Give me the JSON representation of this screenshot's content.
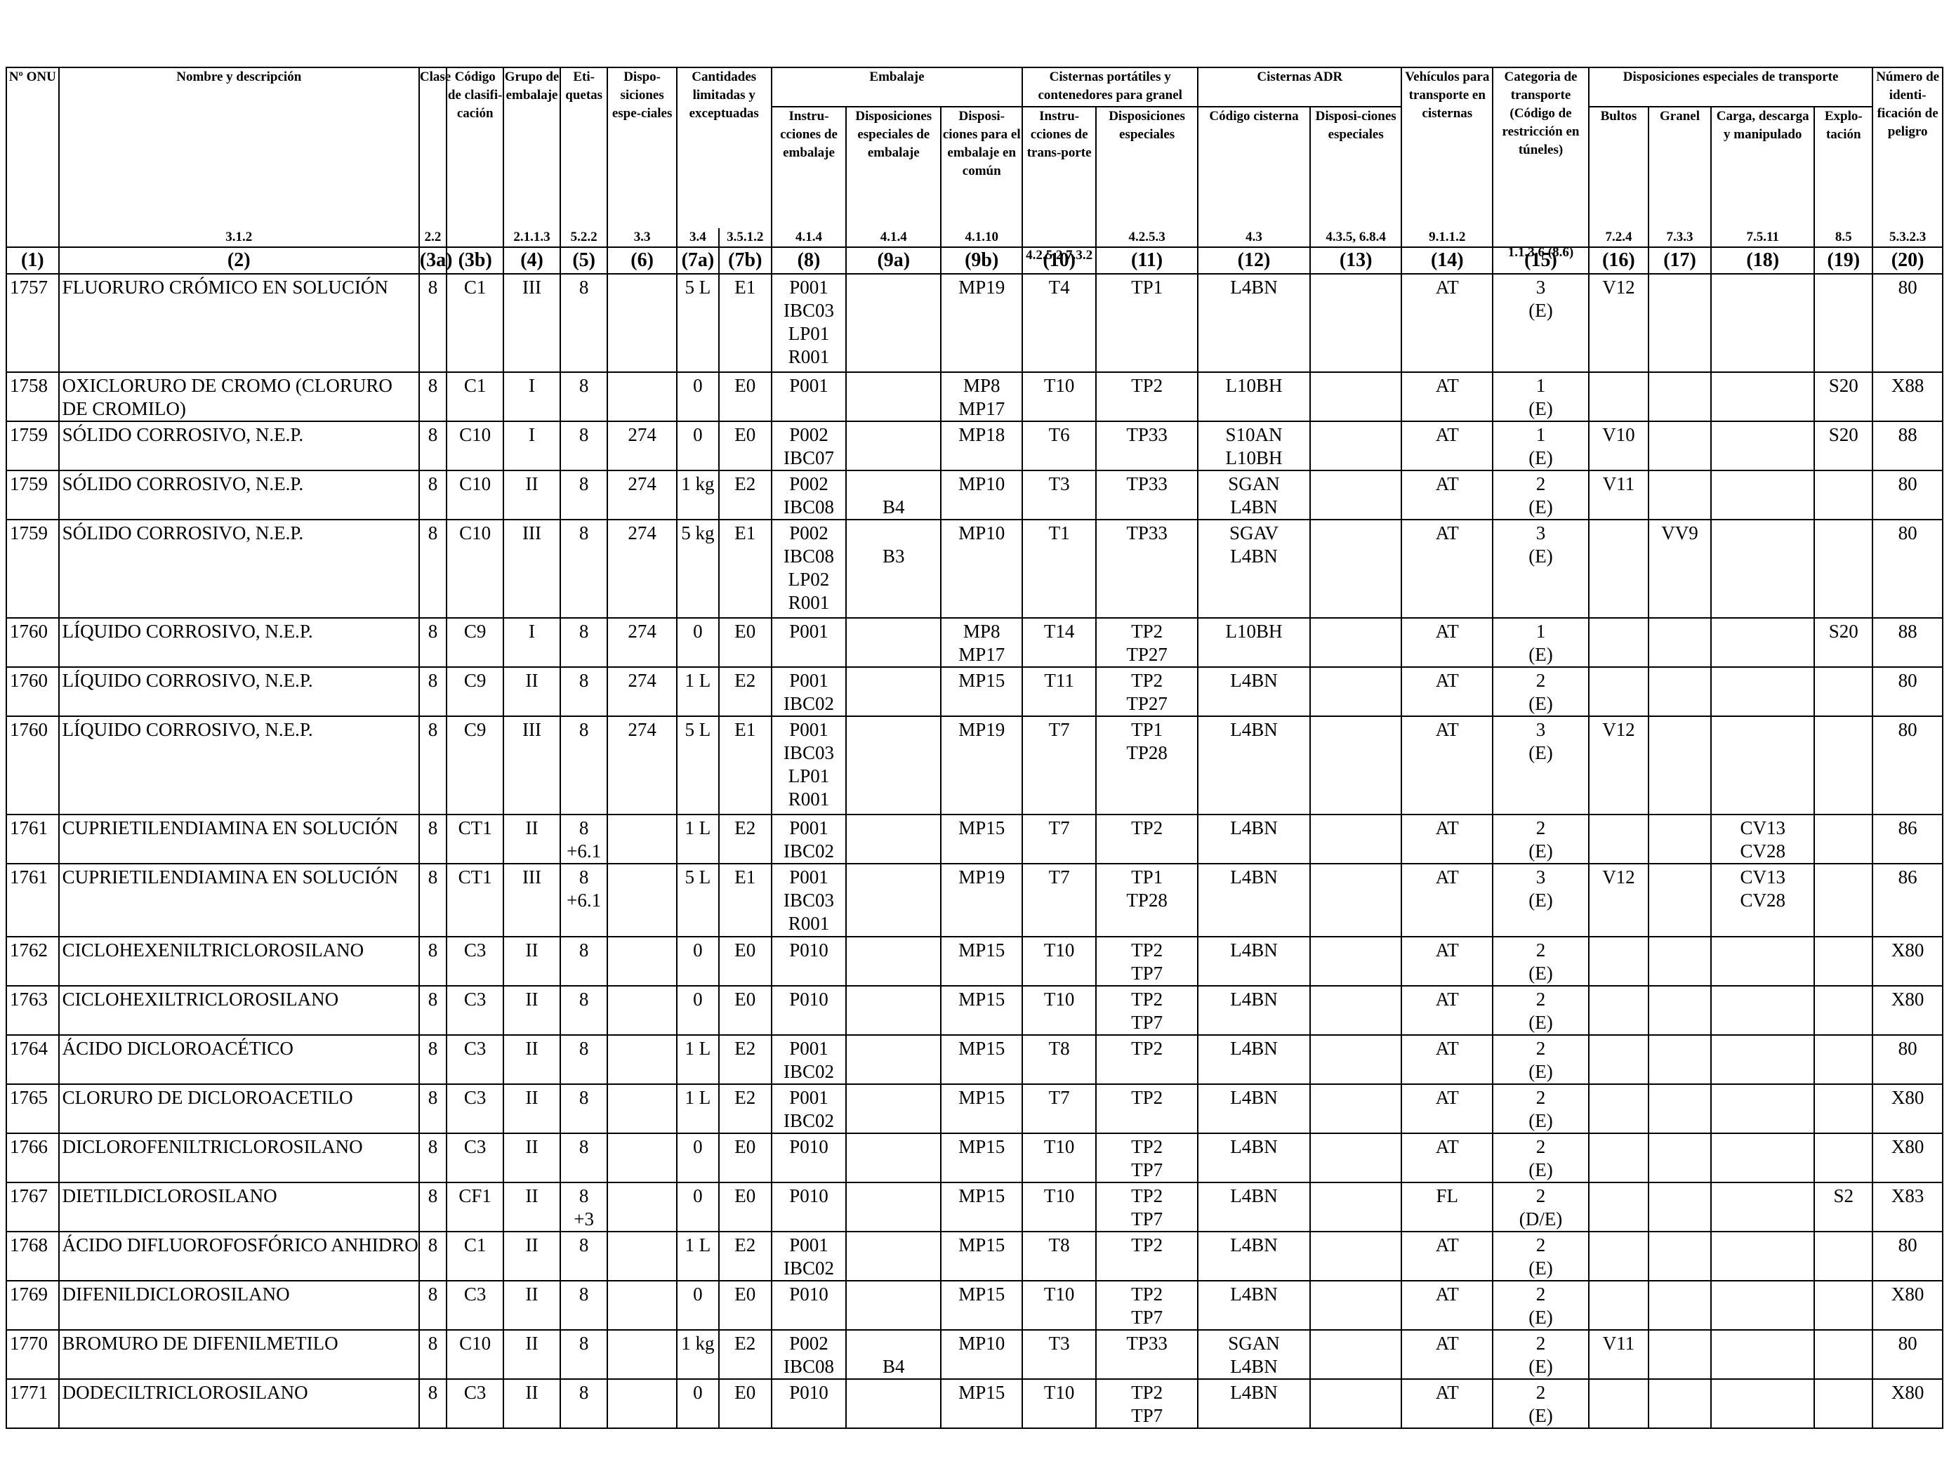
{
  "header": {
    "row1": {
      "onu": "Nº ONU",
      "nombre": "Nombre y descripción",
      "clase": "Clase",
      "codigo": "Código de clasifi-cación",
      "grupo": "Grupo de embalaje",
      "etiquetas": "Eti-quetas",
      "disposiciones": "Dispo-siciones espe-ciales",
      "cantidades": "Cantidades limitadas y exceptuadas",
      "embalaje": "Embalaje",
      "cisternas_port": "Cisternas portátiles y contenedores para granel",
      "cisternas_adr": "Cisternas ADR",
      "vehiculos": "Vehículos para transporte en cisternas",
      "categoria": "Categoria de transporte (Código de restricción en túneles)",
      "disp_transporte": "Disposiciones especiales de transporte",
      "numero": "Número de identi-ficación de peligro"
    },
    "row2": {
      "instr_embalaje": "Instru-cciones de embalaje",
      "disp_esp_embalaje": "Disposiciones especiales de embalaje",
      "disp_comun": "Disposi-ciones para el embalaje en común",
      "instr_transporte": "Instru-cciones de trans-porte",
      "disp_esp_cist": "Disposiciones especiales",
      "codigo_cisterna": "Código cisterna",
      "disp_esp_adr": "Disposi-ciones especiales",
      "bultos": "Bultos",
      "granel": "Granel",
      "carga": "Carga, descarga y manipulado",
      "explotacion": "Explo-tación"
    },
    "refs": {
      "nombre": "3.1.2",
      "clase": "2.2",
      "grupo": "2.1.1.3",
      "etiquetas": "5.2.2",
      "disposiciones": "3.3",
      "c7a": "3.4",
      "c7b": "3.5.1.2",
      "c8": "4.1.4",
      "c9a": "4.1.4",
      "c9b": "4.1.10",
      "c10": "4.2.5.2 7.3.2",
      "c11": "4.2.5.3",
      "c12": "4.3",
      "c13": "4.3.5, 6.8.4",
      "c14": "9.1.1.2",
      "c15": "1.1.3.6 (8.6)",
      "c16": "7.2.4",
      "c17": "7.3.3",
      "c18": "7.5.11",
      "c19": "8.5",
      "c20": "5.3.2.3"
    },
    "colnums": [
      "(1)",
      "(2)",
      "(3a)",
      "(3b)",
      "(4)",
      "(5)",
      "(6)",
      "(7a)",
      "(7b)",
      "(8)",
      "(9a)",
      "(9b)",
      "(10)",
      "(11)",
      "(12)",
      "(13)",
      "(14)",
      "(15)",
      "(16)",
      "(17)",
      "(18)",
      "(19)",
      "(20)"
    ]
  },
  "rows": [
    {
      "onu": "1757",
      "nombre": "FLUORURO CRÓMICO EN SOLUCIÓN",
      "clase": "8",
      "codigo": "C1",
      "grupo": "III",
      "etiq": [
        "8"
      ],
      "disp": "",
      "c7a": "5 L",
      "c7b": "E1",
      "c8": [
        "P001",
        "IBC03",
        "LP01",
        "R001"
      ],
      "c9a": "",
      "c9b": [
        "MP19"
      ],
      "c10": "T4",
      "c11": [
        "TP1"
      ],
      "c12": [
        "L4BN"
      ],
      "c13": "",
      "c14": "AT",
      "c15": [
        "3",
        "(E)"
      ],
      "c16": "V12",
      "c17": "",
      "c18": [],
      "c19": "",
      "c20": "80",
      "h": 140
    },
    {
      "onu": "1758",
      "nombre": "OXICLORURO DE CROMO (CLORURO DE CROMILO)",
      "clase": "8",
      "codigo": "C1",
      "grupo": "I",
      "etiq": [
        "8"
      ],
      "disp": "",
      "c7a": "0",
      "c7b": "E0",
      "c8": [
        "P001"
      ],
      "c9a": "",
      "c9b": [
        "MP8",
        "MP17"
      ],
      "c10": "T10",
      "c11": [
        "TP2"
      ],
      "c12": [
        "L10BH"
      ],
      "c13": "",
      "c14": "AT",
      "c15": [
        "1",
        "(E)"
      ],
      "c16": "",
      "c17": "",
      "c18": [],
      "c19": "S20",
      "c20": "X88",
      "h": 70
    },
    {
      "onu": "1759",
      "nombre": "SÓLIDO CORROSIVO, N.E.P.",
      "clase": "8",
      "codigo": "C10",
      "grupo": "I",
      "etiq": [
        "8"
      ],
      "disp": "274",
      "c7a": "0",
      "c7b": "E0",
      "c8": [
        "P002",
        "IBC07"
      ],
      "c9a": "",
      "c9b": [
        "MP18"
      ],
      "c10": "T6",
      "c11": [
        "TP33"
      ],
      "c12": [
        "S10AN",
        "L10BH"
      ],
      "c13": "",
      "c14": "AT",
      "c15": [
        "1",
        "(E)"
      ],
      "c16": "V10",
      "c17": "",
      "c18": [],
      "c19": "S20",
      "c20": "88",
      "h": 70
    },
    {
      "onu": "1759",
      "nombre": "SÓLIDO CORROSIVO, N.E.P.",
      "clase": "8",
      "codigo": "C10",
      "grupo": "II",
      "etiq": [
        "8"
      ],
      "disp": "274",
      "c7a": "1 kg",
      "c7b": "E2",
      "c8": [
        "P002",
        "IBC08"
      ],
      "c9a": "B4",
      "c9b": [
        "MP10"
      ],
      "c10": "T3",
      "c11": [
        "TP33"
      ],
      "c12": [
        "SGAN",
        "L4BN"
      ],
      "c13": "",
      "c14": "AT",
      "c15": [
        "2",
        "(E)"
      ],
      "c16": "V11",
      "c17": "",
      "c18": [],
      "c19": "",
      "c20": "80",
      "h": 70,
      "c9a_offset": true
    },
    {
      "onu": "1759",
      "nombre": "SÓLIDO CORROSIVO, N.E.P.",
      "clase": "8",
      "codigo": "C10",
      "grupo": "III",
      "etiq": [
        "8"
      ],
      "disp": "274",
      "c7a": "5 kg",
      "c7b": "E1",
      "c8": [
        "P002",
        "IBC08",
        "LP02",
        "R001"
      ],
      "c9a": "B3",
      "c9b": [
        "MP10"
      ],
      "c10": "T1",
      "c11": [
        "TP33"
      ],
      "c12": [
        "SGAV",
        "L4BN"
      ],
      "c13": "",
      "c14": "AT",
      "c15": [
        "3",
        "(E)"
      ],
      "c16": "",
      "c17": "VV9",
      "c18": [],
      "c19": "",
      "c20": "80",
      "h": 140,
      "c9a_offset": true
    },
    {
      "onu": "1760",
      "nombre": "LÍQUIDO CORROSIVO, N.E.P.",
      "clase": "8",
      "codigo": "C9",
      "grupo": "I",
      "etiq": [
        "8"
      ],
      "disp": "274",
      "c7a": "0",
      "c7b": "E0",
      "c8": [
        "P001"
      ],
      "c9a": "",
      "c9b": [
        "MP8",
        "MP17"
      ],
      "c10": "T14",
      "c11": [
        "TP2",
        "TP27"
      ],
      "c12": [
        "L10BH"
      ],
      "c13": "",
      "c14": "AT",
      "c15": [
        "1",
        "(E)"
      ],
      "c16": "",
      "c17": "",
      "c18": [],
      "c19": "S20",
      "c20": "88",
      "h": 70
    },
    {
      "onu": "1760",
      "nombre": "LÍQUIDO CORROSIVO, N.E.P.",
      "clase": "8",
      "codigo": "C9",
      "grupo": "II",
      "etiq": [
        "8"
      ],
      "disp": "274",
      "c7a": "1 L",
      "c7b": "E2",
      "c8": [
        "P001",
        "IBC02"
      ],
      "c9a": "",
      "c9b": [
        "MP15"
      ],
      "c10": "T11",
      "c11": [
        "TP2",
        "TP27"
      ],
      "c12": [
        "L4BN"
      ],
      "c13": "",
      "c14": "AT",
      "c15": [
        "2",
        "(E)"
      ],
      "c16": "",
      "c17": "",
      "c18": [],
      "c19": "",
      "c20": "80",
      "h": 70
    },
    {
      "onu": "1760",
      "nombre": "LÍQUIDO CORROSIVO, N.E.P.",
      "clase": "8",
      "codigo": "C9",
      "grupo": "III",
      "etiq": [
        "8"
      ],
      "disp": "274",
      "c7a": "5 L",
      "c7b": "E1",
      "c8": [
        "P001",
        "IBC03",
        "LP01",
        "R001"
      ],
      "c9a": "",
      "c9b": [
        "MP19"
      ],
      "c10": "T7",
      "c11": [
        "TP1",
        "TP28"
      ],
      "c12": [
        "L4BN"
      ],
      "c13": "",
      "c14": "AT",
      "c15": [
        "3",
        "(E)"
      ],
      "c16": "V12",
      "c17": "",
      "c18": [],
      "c19": "",
      "c20": "80",
      "h": 140
    },
    {
      "onu": "1761",
      "nombre": "CUPRIETILENDIAMINA EN SOLUCIÓN",
      "clase": "8",
      "codigo": "CT1",
      "grupo": "II",
      "etiq": [
        "8",
        "+6.1"
      ],
      "disp": "",
      "c7a": "1 L",
      "c7b": "E2",
      "c8": [
        "P001",
        "IBC02"
      ],
      "c9a": "",
      "c9b": [
        "MP15"
      ],
      "c10": "T7",
      "c11": [
        "TP2"
      ],
      "c12": [
        "L4BN"
      ],
      "c13": "",
      "c14": "AT",
      "c15": [
        "2",
        "(E)"
      ],
      "c16": "",
      "c17": "",
      "c18": [
        "CV13",
        "CV28"
      ],
      "c19": "",
      "c20": "86",
      "h": 70
    },
    {
      "onu": "1761",
      "nombre": "CUPRIETILENDIAMINA EN SOLUCIÓN",
      "clase": "8",
      "codigo": "CT1",
      "grupo": "III",
      "etiq": [
        "8",
        "+6.1"
      ],
      "disp": "",
      "c7a": "5 L",
      "c7b": "E1",
      "c8": [
        "P001",
        "IBC03",
        "R001"
      ],
      "c9a": "",
      "c9b": [
        "MP19"
      ],
      "c10": "T7",
      "c11": [
        "TP1",
        "TP28"
      ],
      "c12": [
        "L4BN"
      ],
      "c13": "",
      "c14": "AT",
      "c15": [
        "3",
        "(E)"
      ],
      "c16": "V12",
      "c17": "",
      "c18": [
        "CV13",
        "CV28"
      ],
      "c19": "",
      "c20": "86",
      "h": 104
    },
    {
      "onu": "1762",
      "nombre": "CICLOHEXENILTRICLOROSILANO",
      "clase": "8",
      "codigo": "C3",
      "grupo": "II",
      "etiq": [
        "8"
      ],
      "disp": "",
      "c7a": "0",
      "c7b": "E0",
      "c8": [
        "P010"
      ],
      "c9a": "",
      "c9b": [
        "MP15"
      ],
      "c10": "T10",
      "c11": [
        "TP2",
        "TP7"
      ],
      "c12": [
        "L4BN"
      ],
      "c13": "",
      "c14": "AT",
      "c15": [
        "2",
        "(E)"
      ],
      "c16": "",
      "c17": "",
      "c18": [],
      "c19": "",
      "c20": "X80",
      "h": 70
    },
    {
      "onu": "1763",
      "nombre": "CICLOHEXILTRICLOROSILANO",
      "clase": "8",
      "codigo": "C3",
      "grupo": "II",
      "etiq": [
        "8"
      ],
      "disp": "",
      "c7a": "0",
      "c7b": "E0",
      "c8": [
        "P010"
      ],
      "c9a": "",
      "c9b": [
        "MP15"
      ],
      "c10": "T10",
      "c11": [
        "TP2",
        "TP7"
      ],
      "c12": [
        "L4BN"
      ],
      "c13": "",
      "c14": "AT",
      "c15": [
        "2",
        "(E)"
      ],
      "c16": "",
      "c17": "",
      "c18": [],
      "c19": "",
      "c20": "X80",
      "h": 70
    },
    {
      "onu": "1764",
      "nombre": "ÁCIDO DICLOROACÉTICO",
      "clase": "8",
      "codigo": "C3",
      "grupo": "II",
      "etiq": [
        "8"
      ],
      "disp": "",
      "c7a": "1 L",
      "c7b": "E2",
      "c8": [
        "P001",
        "IBC02"
      ],
      "c9a": "",
      "c9b": [
        "MP15"
      ],
      "c10": "T8",
      "c11": [
        "TP2"
      ],
      "c12": [
        "L4BN"
      ],
      "c13": "",
      "c14": "AT",
      "c15": [
        "2",
        "(E)"
      ],
      "c16": "",
      "c17": "",
      "c18": [],
      "c19": "",
      "c20": "80",
      "h": 70
    },
    {
      "onu": "1765",
      "nombre": "CLORURO DE DICLOROACETILO",
      "clase": "8",
      "codigo": "C3",
      "grupo": "II",
      "etiq": [
        "8"
      ],
      "disp": "",
      "c7a": "1 L",
      "c7b": "E2",
      "c8": [
        "P001",
        "IBC02"
      ],
      "c9a": "",
      "c9b": [
        "MP15"
      ],
      "c10": "T7",
      "c11": [
        "TP2"
      ],
      "c12": [
        "L4BN"
      ],
      "c13": "",
      "c14": "AT",
      "c15": [
        "2",
        "(E)"
      ],
      "c16": "",
      "c17": "",
      "c18": [],
      "c19": "",
      "c20": "X80",
      "h": 70
    },
    {
      "onu": "1766",
      "nombre": "DICLOROFENILTRICLOROSILANO",
      "clase": "8",
      "codigo": "C3",
      "grupo": "II",
      "etiq": [
        "8"
      ],
      "disp": "",
      "c7a": "0",
      "c7b": "E0",
      "c8": [
        "P010"
      ],
      "c9a": "",
      "c9b": [
        "MP15"
      ],
      "c10": "T10",
      "c11": [
        "TP2",
        "TP7"
      ],
      "c12": [
        "L4BN"
      ],
      "c13": "",
      "c14": "AT",
      "c15": [
        "2",
        "(E)"
      ],
      "c16": "",
      "c17": "",
      "c18": [],
      "c19": "",
      "c20": "X80",
      "h": 70
    },
    {
      "onu": "1767",
      "nombre": "DIETILDICLOROSILANO",
      "clase": "8",
      "codigo": "CF1",
      "grupo": "II",
      "etiq": [
        "8",
        "+3"
      ],
      "disp": "",
      "c7a": "0",
      "c7b": "E0",
      "c8": [
        "P010"
      ],
      "c9a": "",
      "c9b": [
        "MP15"
      ],
      "c10": "T10",
      "c11": [
        "TP2",
        "TP7"
      ],
      "c12": [
        "L4BN"
      ],
      "c13": "",
      "c14": "FL",
      "c15": [
        "2",
        "(D/E)"
      ],
      "c16": "",
      "c17": "",
      "c18": [],
      "c19": "S2",
      "c20": "X83",
      "h": 70
    },
    {
      "onu": "1768",
      "nombre": "ÁCIDO DIFLUOROFOSFÓRICO ANHIDRO",
      "clase": "8",
      "codigo": "C1",
      "grupo": "II",
      "etiq": [
        "8"
      ],
      "disp": "",
      "c7a": "1 L",
      "c7b": "E2",
      "c8": [
        "P001",
        "IBC02"
      ],
      "c9a": "",
      "c9b": [
        "MP15"
      ],
      "c10": "T8",
      "c11": [
        "TP2"
      ],
      "c12": [
        "L4BN"
      ],
      "c13": "",
      "c14": "AT",
      "c15": [
        "2",
        "(E)"
      ],
      "c16": "",
      "c17": "",
      "c18": [],
      "c19": "",
      "c20": "80",
      "h": 70
    },
    {
      "onu": "1769",
      "nombre": "DIFENILDICLOROSILANO",
      "clase": "8",
      "codigo": "C3",
      "grupo": "II",
      "etiq": [
        "8"
      ],
      "disp": "",
      "c7a": "0",
      "c7b": "E0",
      "c8": [
        "P010"
      ],
      "c9a": "",
      "c9b": [
        "MP15"
      ],
      "c10": "T10",
      "c11": [
        "TP2",
        "TP7"
      ],
      "c12": [
        "L4BN"
      ],
      "c13": "",
      "c14": "AT",
      "c15": [
        "2",
        "(E)"
      ],
      "c16": "",
      "c17": "",
      "c18": [],
      "c19": "",
      "c20": "X80",
      "h": 70
    },
    {
      "onu": "1770",
      "nombre": "BROMURO DE DIFENILMETILO",
      "clase": "8",
      "codigo": "C10",
      "grupo": "II",
      "etiq": [
        "8"
      ],
      "disp": "",
      "c7a": "1 kg",
      "c7b": "E2",
      "c8": [
        "P002",
        "IBC08"
      ],
      "c9a": "B4",
      "c9b": [
        "MP10"
      ],
      "c10": "T3",
      "c11": [
        "TP33"
      ],
      "c12": [
        "SGAN",
        "L4BN"
      ],
      "c13": "",
      "c14": "AT",
      "c15": [
        "2",
        "(E)"
      ],
      "c16": "V11",
      "c17": "",
      "c18": [],
      "c19": "",
      "c20": "80",
      "h": 70,
      "c9a_offset": true
    },
    {
      "onu": "1771",
      "nombre": "DODECILTRICLOROSILANO",
      "clase": "8",
      "codigo": "C3",
      "grupo": "II",
      "etiq": [
        "8"
      ],
      "disp": "",
      "c7a": "0",
      "c7b": "E0",
      "c8": [
        "P010"
      ],
      "c9a": "",
      "c9b": [
        "MP15"
      ],
      "c10": "T10",
      "c11": [
        "TP2",
        "TP7"
      ],
      "c12": [
        "L4BN"
      ],
      "c13": "",
      "c14": "AT",
      "c15": [
        "2",
        "(E)"
      ],
      "c16": "",
      "c17": "",
      "c18": [],
      "c19": "",
      "c20": "X80",
      "h": 70
    }
  ]
}
